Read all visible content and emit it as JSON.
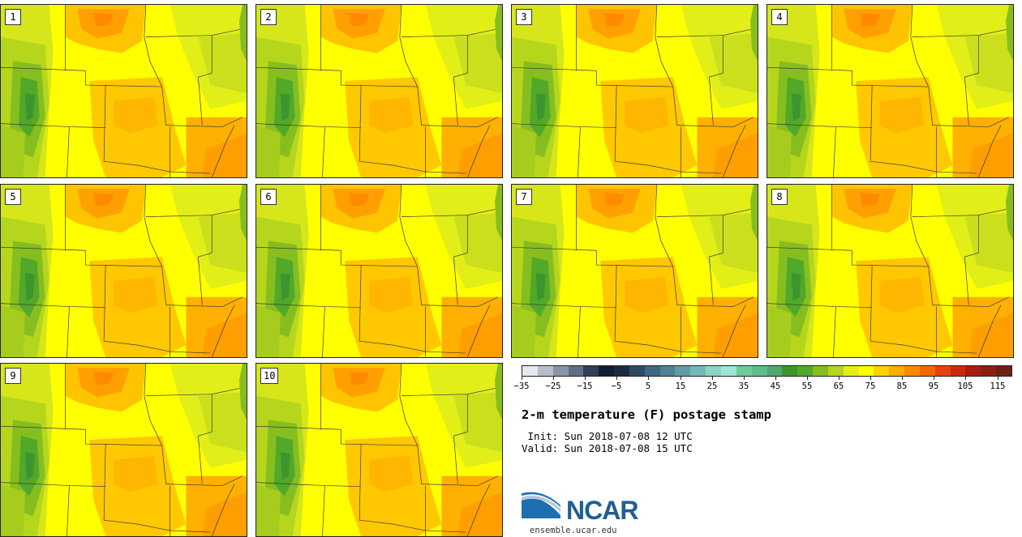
{
  "stamps": [
    {
      "label": "1"
    },
    {
      "label": "2"
    },
    {
      "label": "3"
    },
    {
      "label": "4"
    },
    {
      "label": "5"
    },
    {
      "label": "6"
    },
    {
      "label": "7"
    },
    {
      "label": "8"
    },
    {
      "label": "9"
    },
    {
      "label": "10"
    }
  ],
  "colorbar": {
    "colors": [
      "#e6e8ee",
      "#b8bfcc",
      "#8a93a8",
      "#606d87",
      "#333d58",
      "#101c33",
      "#1a2a42",
      "#2d4a63",
      "#3d6682",
      "#4f8194",
      "#649ba8",
      "#76b8b8",
      "#8dd4c8",
      "#9ce6d7",
      "#6ccc9a",
      "#5cbf89",
      "#4eaa6c",
      "#3c952f",
      "#52a828",
      "#86be20",
      "#b5d61c",
      "#e6ee18",
      "#ffff00",
      "#ffd200",
      "#ffae00",
      "#ff8a00",
      "#f26700",
      "#e8400f",
      "#cc2a10",
      "#aa1c10",
      "#8c1f10",
      "#6e1f14"
    ],
    "tick_labels": [
      "−35",
      "−25",
      "−15",
      "−5",
      "5",
      "15",
      "25",
      "35",
      "45",
      "55",
      "65",
      "75",
      "85",
      "95",
      "105",
      "115"
    ]
  },
  "title": "2-m temperature (F) postage stamp",
  "init_line": " Init: Sun 2018-07-08 12 UTC",
  "valid_line": "Valid: Sun 2018-07-08 15 UTC",
  "logo": {
    "text": "NCAR",
    "url": "ensemble.ucar.edu"
  }
}
